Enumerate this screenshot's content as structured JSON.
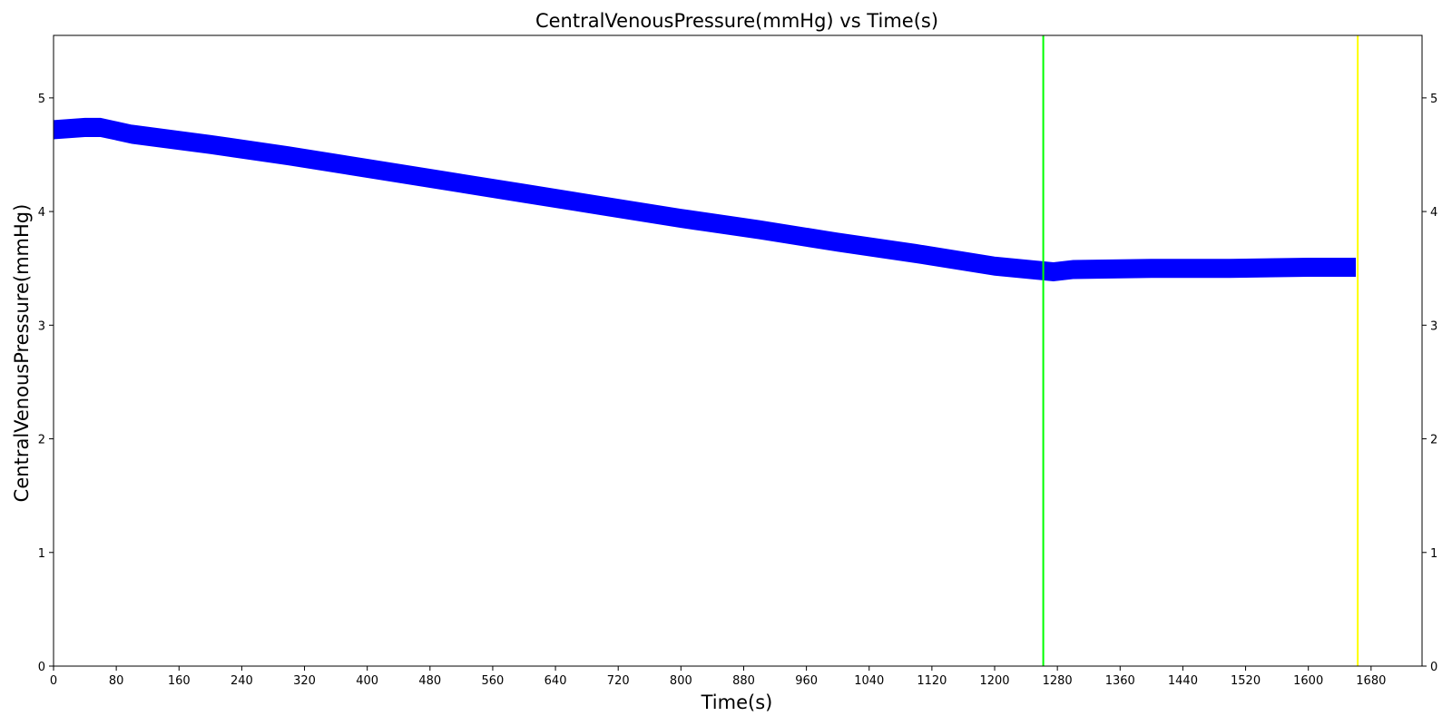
{
  "chart_data": {
    "type": "line",
    "title": "CentralVenousPressure(mmHg) vs Time(s)",
    "xlabel": "Time(s)",
    "ylabel": "CentralVenousPressure(mmHg)",
    "xlim": [
      0,
      1745
    ],
    "ylim": [
      0,
      5.55
    ],
    "x_ticks": [
      0,
      80,
      160,
      240,
      320,
      400,
      480,
      560,
      640,
      720,
      800,
      880,
      960,
      1040,
      1120,
      1200,
      1280,
      1360,
      1440,
      1520,
      1600,
      1680
    ],
    "y_ticks": [
      0,
      1,
      2,
      3,
      4,
      5
    ],
    "right_y_ticks": true,
    "grid": false,
    "series": [
      {
        "color": "#0000ff",
        "band_thickness": 0.16,
        "x": [
          0,
          40,
          60,
          100,
          200,
          300,
          400,
          500,
          600,
          700,
          800,
          900,
          1000,
          1100,
          1200,
          1260,
          1275,
          1300,
          1400,
          1500,
          1600,
          1660
        ],
        "y": [
          4.72,
          4.74,
          4.74,
          4.68,
          4.59,
          4.49,
          4.38,
          4.27,
          4.16,
          4.05,
          3.94,
          3.84,
          3.73,
          3.63,
          3.52,
          3.48,
          3.47,
          3.49,
          3.5,
          3.5,
          3.51,
          3.51
        ]
      }
    ],
    "vertical_lines": [
      {
        "x": 1262,
        "color": "#00ff00"
      },
      {
        "x": 1663,
        "color": "#ffff00"
      }
    ]
  }
}
